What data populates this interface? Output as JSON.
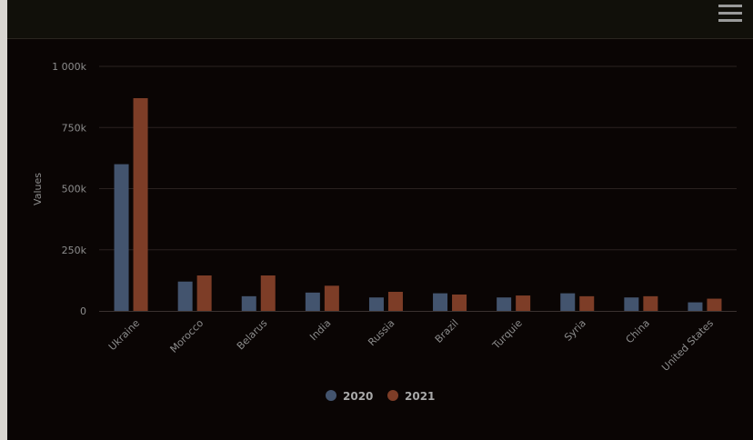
{
  "chart_data": {
    "type": "bar",
    "title": "",
    "xlabel": "",
    "ylabel": "Values",
    "ylim": [
      0,
      1000000
    ],
    "yticks": [
      {
        "value": 0,
        "label": "0"
      },
      {
        "value": 250000,
        "label": "250k"
      },
      {
        "value": 500000,
        "label": "500k"
      },
      {
        "value": 750000,
        "label": "750k"
      },
      {
        "value": 1000000,
        "label": "1 000k"
      }
    ],
    "categories": [
      "Ukraine",
      "Morocco",
      "Belarus",
      "India",
      "Russia",
      "Brazil",
      "Turquie",
      "Syria",
      "China",
      "United States"
    ],
    "series": [
      {
        "name": "2020",
        "color": "#43546e",
        "values": [
          600000,
          120000,
          60000,
          75000,
          55000,
          72000,
          55000,
          72000,
          55000,
          35000
        ]
      },
      {
        "name": "2021",
        "color": "#7d3d27",
        "values": [
          870000,
          145000,
          145000,
          103000,
          78000,
          67000,
          63000,
          60000,
          60000,
          50000
        ]
      }
    ],
    "grid": true,
    "legend_position": "bottom-center"
  },
  "colors": {
    "background": "#0a0504",
    "gridline": "#2a2220",
    "text": "#8c8c8c"
  },
  "toolbar": {
    "menu_icon": "hamburger-menu-icon"
  }
}
